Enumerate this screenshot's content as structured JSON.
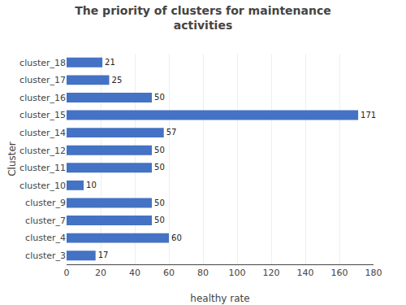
{
  "chart_data": {
    "type": "bar",
    "orientation": "horizontal",
    "title": "The priority of clusters for maintenance\nactivities",
    "xlabel": "healthy rate",
    "ylabel": "Cluster",
    "categories": [
      "cluster_3",
      "cluster_4",
      "cluster_7",
      "cluster_9",
      "cluster_10",
      "cluster_11",
      "cluster_12",
      "cluster_14",
      "cluster_15",
      "cluster_16",
      "cluster_17",
      "cluster_18"
    ],
    "values": [
      17,
      60,
      50,
      50,
      10,
      50,
      50,
      57,
      171,
      50,
      25,
      21
    ],
    "color": "#4472C4",
    "xlim": [
      0,
      180
    ],
    "xticks": [
      0,
      20,
      40,
      60,
      80,
      100,
      120,
      140,
      160,
      180
    ],
    "grid": true,
    "data_labels": true
  }
}
